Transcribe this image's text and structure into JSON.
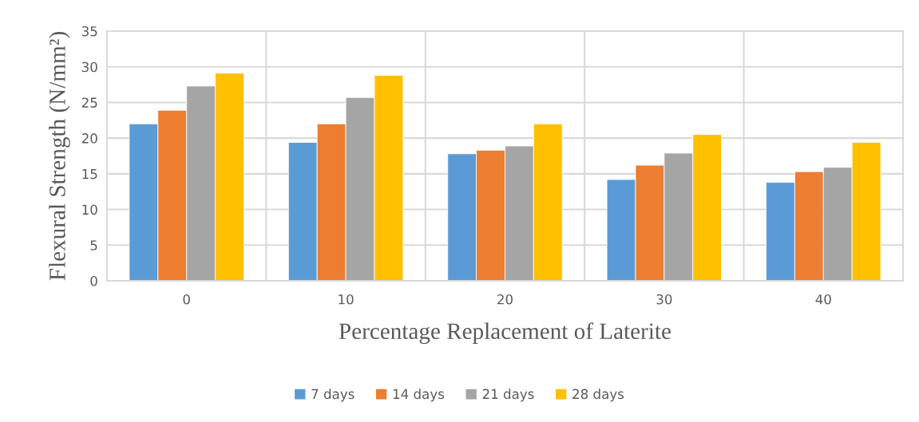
{
  "chart_data": {
    "type": "bar",
    "xlabel": "Percentage Replacement of Laterite",
    "ylabel": "Flexural Strength (N/mm²)",
    "categories": [
      "0",
      "10",
      "20",
      "30",
      "40"
    ],
    "series": [
      {
        "name": "7 days",
        "color": "#5b9bd5",
        "values": [
          22.0,
          19.4,
          17.8,
          14.2,
          13.8
        ]
      },
      {
        "name": "14 days",
        "color": "#ed7d31",
        "values": [
          23.9,
          22.0,
          18.3,
          16.2,
          15.3
        ]
      },
      {
        "name": "21 days",
        "color": "#a5a5a5",
        "values": [
          27.3,
          25.7,
          18.9,
          17.9,
          15.9
        ]
      },
      {
        "name": "28 days",
        "color": "#ffc000",
        "values": [
          29.1,
          28.8,
          22.0,
          20.5,
          19.4
        ]
      }
    ],
    "ylim": [
      0,
      35
    ],
    "yticks": [
      0,
      5,
      10,
      15,
      20,
      25,
      30,
      35
    ],
    "grid": true,
    "legend": "bottom"
  }
}
